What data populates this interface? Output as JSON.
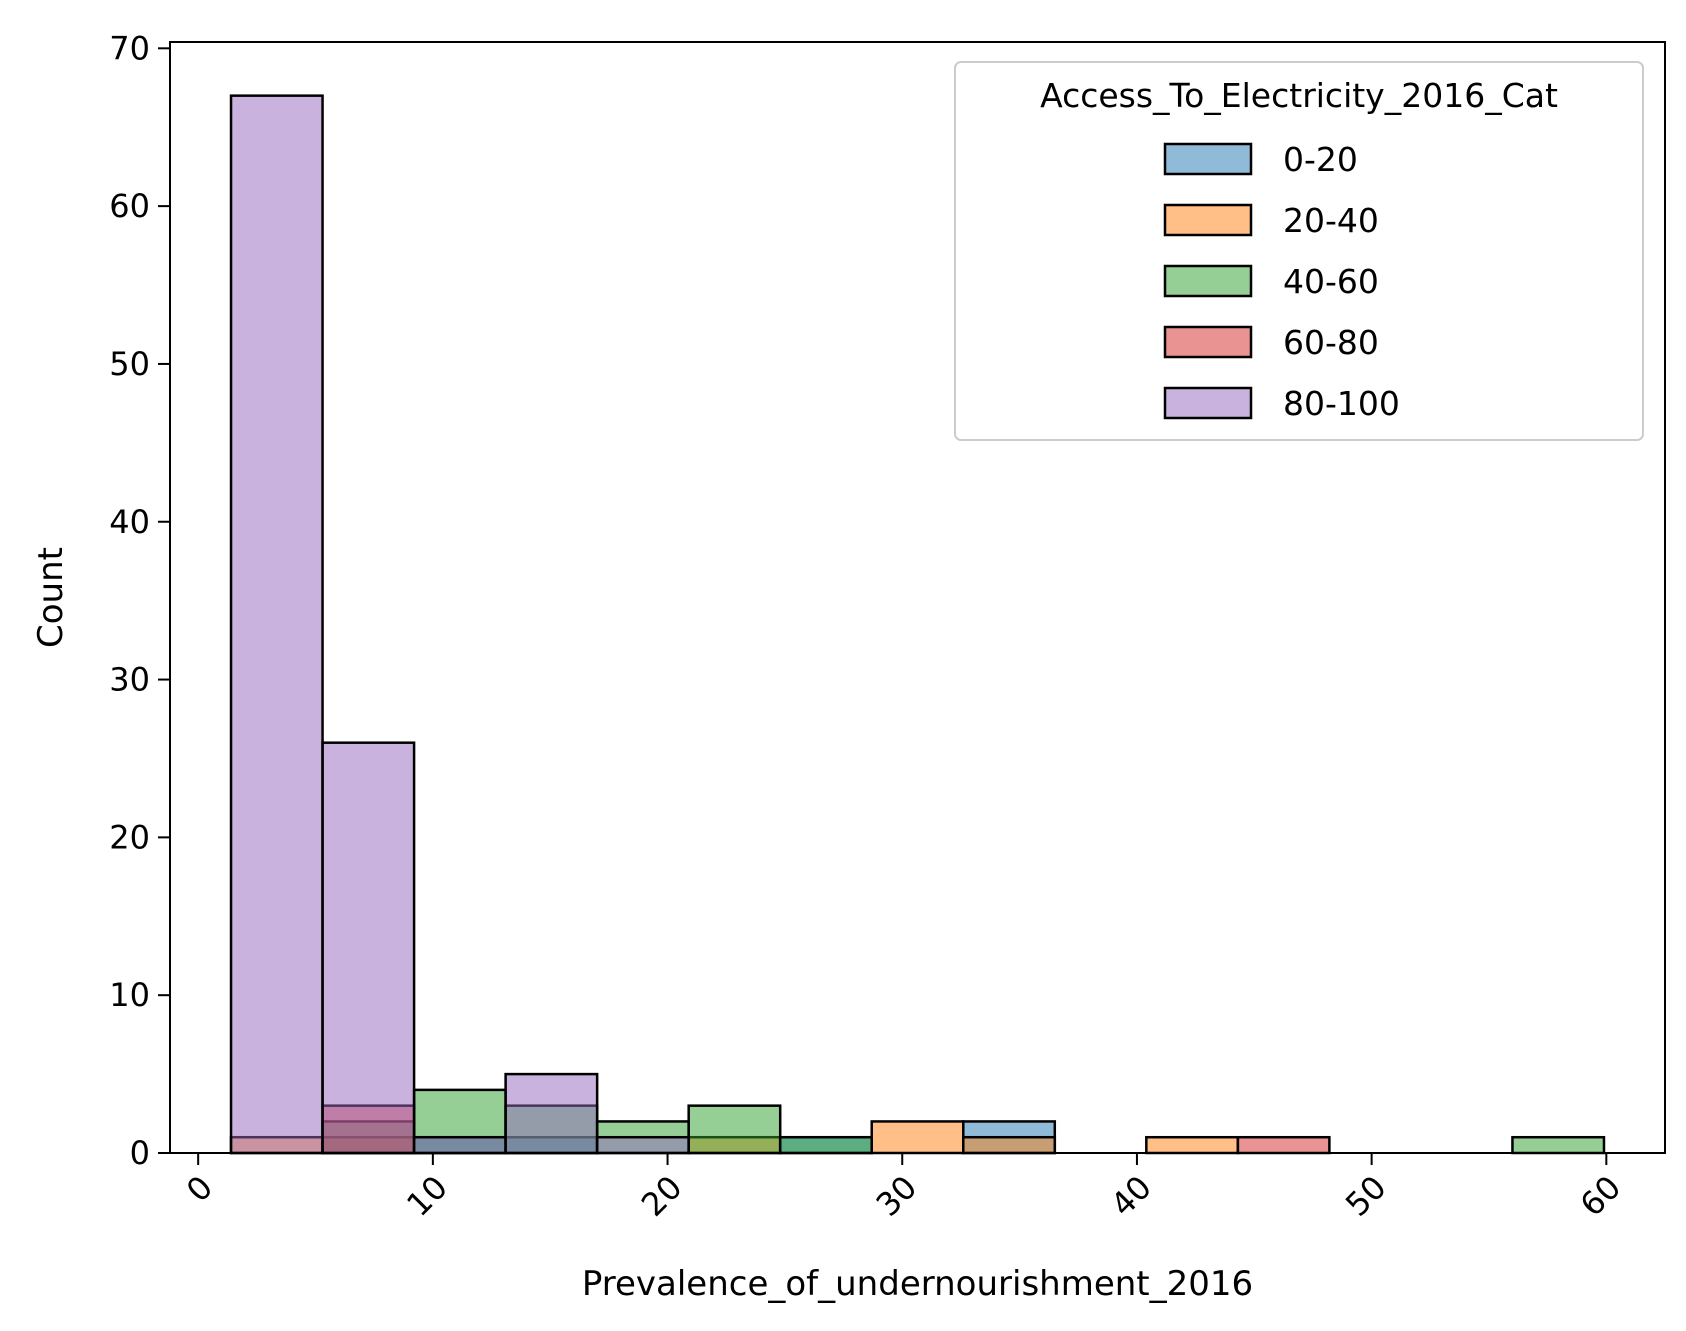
{
  "chart_data": {
    "type": "bar",
    "subtype": "overlaid-histogram",
    "title": "",
    "xlabel": "Prevalence_of_undernourishment_2016",
    "ylabel": "Count",
    "xlim": [
      -1.2,
      62.5
    ],
    "ylim": [
      0,
      70.4
    ],
    "xticks": [
      0,
      10,
      20,
      30,
      40,
      50,
      60
    ],
    "yticks": [
      0,
      10,
      20,
      30,
      40,
      50,
      60,
      70
    ],
    "xtick_rotation": 45,
    "grid": false,
    "legend": {
      "title": "Access_To_Electricity_2016_Cat",
      "placement": "top-right"
    },
    "bin_edges": [
      1.4,
      5.3,
      9.2,
      13.1,
      17.0,
      20.9,
      24.8,
      28.7,
      32.6,
      36.5,
      40.4,
      44.3,
      48.2,
      52.1,
      56.0,
      59.9
    ],
    "series": [
      {
        "name": "0-20",
        "color": "#1f77b4",
        "values": [
          0,
          0,
          1,
          1,
          0,
          0,
          1,
          0,
          2,
          0,
          0,
          0,
          0,
          0,
          0
        ]
      },
      {
        "name": "20-40",
        "color": "#ff7f0e",
        "values": [
          1,
          1,
          0,
          0,
          0,
          1,
          0,
          2,
          1,
          0,
          1,
          0,
          0,
          0,
          0
        ]
      },
      {
        "name": "40-60",
        "color": "#2ca02c",
        "values": [
          0,
          2,
          4,
          3,
          2,
          3,
          1,
          0,
          0,
          0,
          0,
          0,
          0,
          0,
          1
        ]
      },
      {
        "name": "60-80",
        "color": "#d62728",
        "values": [
          0,
          3,
          0,
          0,
          0,
          0,
          0,
          0,
          0,
          0,
          0,
          1,
          0,
          0,
          0
        ]
      },
      {
        "name": "80-100",
        "color": "#9467bd",
        "values": [
          67,
          26,
          1,
          5,
          1,
          0,
          0,
          0,
          0,
          0,
          0,
          0,
          0,
          0,
          0
        ]
      }
    ]
  }
}
